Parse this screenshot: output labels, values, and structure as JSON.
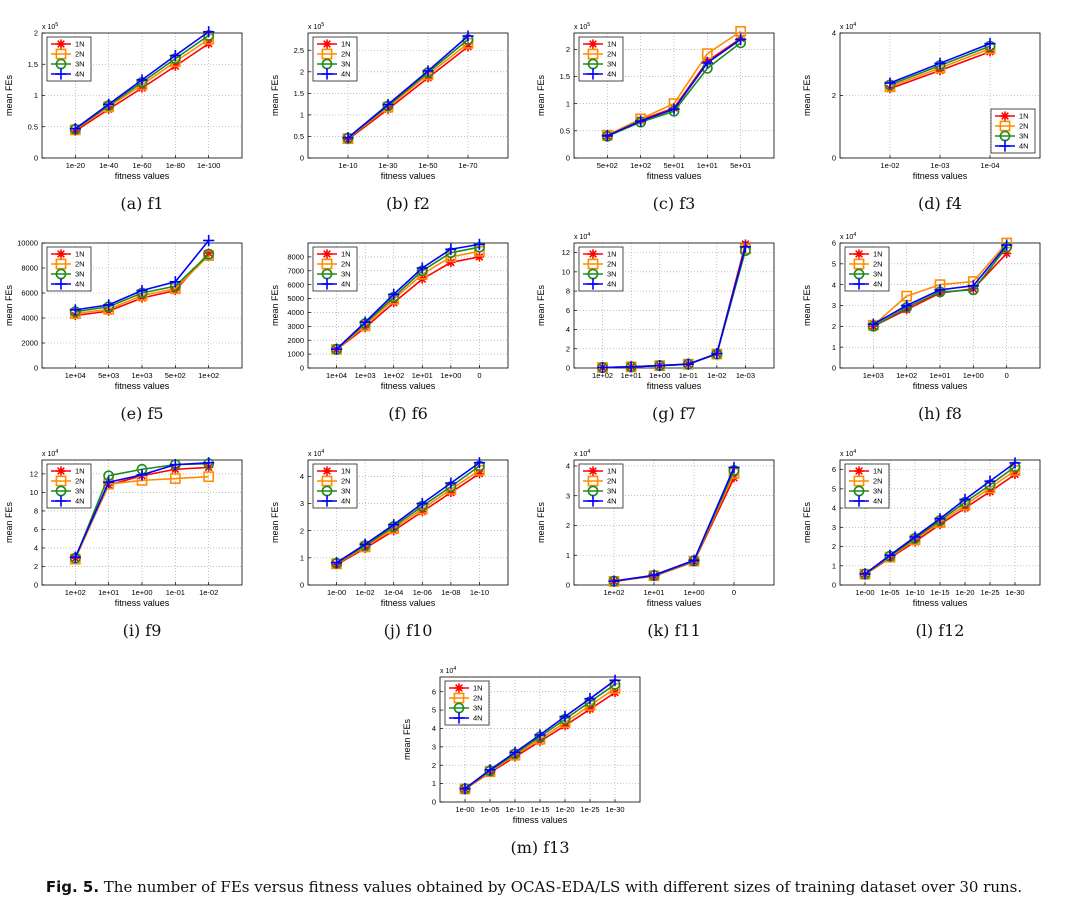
{
  "figure": {
    "caption_label": "Fig. 5.",
    "caption_text": " The number of FEs versus fitness values obtained by OCAS-EDA/LS with different sizes of training dataset over 30 runs."
  },
  "series_colors": {
    "1N": "#ff0000",
    "2N": "#ff8c00",
    "3N": "#1f8a1f",
    "4N": "#0000ff"
  },
  "series_markers": {
    "1N": "asterisk",
    "2N": "square",
    "3N": "circle",
    "4N": "plus"
  },
  "chart_data": [
    {
      "id": "f1",
      "type": "line",
      "caption": "(a)  f1",
      "xlabel": "fitness values",
      "ylabel": "mean FEs",
      "exponent": "x 10",
      "exponent_power": "5",
      "legend": "top-left",
      "categories": [
        "1e-20",
        "1e-40",
        "1e-60",
        "1e-80",
        "1e-100"
      ],
      "ylim": [
        0,
        2.0
      ],
      "yticks": [
        "0",
        "0.5",
        "1",
        "1.5",
        "2"
      ],
      "series": [
        {
          "name": "1N",
          "values": [
            0.43,
            0.78,
            1.12,
            1.47,
            1.83
          ]
        },
        {
          "name": "2N",
          "values": [
            0.45,
            0.82,
            1.17,
            1.54,
            1.9
          ]
        },
        {
          "name": "3N",
          "values": [
            0.46,
            0.84,
            1.21,
            1.59,
            1.96
          ]
        },
        {
          "name": "4N",
          "values": [
            0.47,
            0.86,
            1.25,
            1.64,
            2.02
          ]
        }
      ]
    },
    {
      "id": "f2",
      "type": "line",
      "caption": "(b)  f2",
      "xlabel": "fitness values",
      "ylabel": "mean FEs",
      "exponent": "x 10",
      "exponent_power": "5",
      "legend": "top-left",
      "categories": [
        "1e-10",
        "1e-30",
        "1e-50",
        "1e-70"
      ],
      "ylim": [
        0,
        2.9
      ],
      "yticks": [
        "0",
        "0.5",
        "1",
        "1.5",
        "2",
        "2.5"
      ],
      "series": [
        {
          "name": "1N",
          "values": [
            0.43,
            1.13,
            1.86,
            2.58
          ]
        },
        {
          "name": "2N",
          "values": [
            0.45,
            1.18,
            1.93,
            2.66
          ]
        },
        {
          "name": "3N",
          "values": [
            0.46,
            1.21,
            1.98,
            2.75
          ]
        },
        {
          "name": "4N",
          "values": [
            0.47,
            1.24,
            2.02,
            2.83
          ]
        }
      ]
    },
    {
      "id": "f3",
      "type": "line",
      "caption": "(c)  f3",
      "xlabel": "fitness values",
      "ylabel": "mean FEs",
      "exponent": "x 10",
      "exponent_power": "5",
      "legend": "top-left",
      "categories": [
        "5e+02",
        "1e+02",
        "5e+01",
        "1e+01",
        "5e+01"
      ],
      "ylim": [
        0,
        2.3
      ],
      "yticks": [
        "0",
        "0.5",
        "1",
        "1.5",
        "2"
      ],
      "series": [
        {
          "name": "1N",
          "values": [
            0.4,
            0.7,
            0.92,
            1.78,
            2.2
          ]
        },
        {
          "name": "2N",
          "values": [
            0.42,
            0.72,
            1.0,
            1.92,
            2.33
          ]
        },
        {
          "name": "3N",
          "values": [
            0.4,
            0.66,
            0.86,
            1.65,
            2.12
          ]
        },
        {
          "name": "4N",
          "values": [
            0.41,
            0.68,
            0.9,
            1.75,
            2.18
          ]
        }
      ]
    },
    {
      "id": "f4",
      "type": "line",
      "caption": "(d)  f4",
      "xlabel": "fitness values",
      "ylabel": "mean FEs",
      "exponent": "x 10",
      "exponent_power": "4",
      "legend": "bottom-right",
      "categories": [
        "1e-02",
        "1e-03",
        "1e-04"
      ],
      "ylim": [
        0,
        4
      ],
      "yticks": [
        "0",
        "2",
        "4"
      ],
      "series": [
        {
          "name": "1N",
          "values": [
            2.22,
            2.8,
            3.4
          ]
        },
        {
          "name": "2N",
          "values": [
            2.28,
            2.88,
            3.5
          ]
        },
        {
          "name": "3N",
          "values": [
            2.34,
            2.96,
            3.58
          ]
        },
        {
          "name": "4N",
          "values": [
            2.4,
            3.03,
            3.66
          ]
        }
      ]
    },
    {
      "id": "f5",
      "type": "line",
      "caption": "(e)  f5",
      "xlabel": "fitness values",
      "ylabel": "mean FEs",
      "exponent": "",
      "exponent_power": "",
      "legend": "top-left",
      "categories": [
        "1e+04",
        "5e+03",
        "1e+03",
        "5e+02",
        "1e+02"
      ],
      "ylim": [
        0,
        10000
      ],
      "yticks": [
        "0",
        "2000",
        "4000",
        "6000",
        "8000",
        "10000"
      ],
      "series": [
        {
          "name": "1N",
          "values": [
            4200,
            4550,
            5600,
            6200,
            9200
          ]
        },
        {
          "name": "2N",
          "values": [
            4350,
            4700,
            5800,
            6350,
            9000
          ]
        },
        {
          "name": "3N",
          "values": [
            4500,
            4900,
            6000,
            6550,
            9100
          ]
        },
        {
          "name": "4N",
          "values": [
            4650,
            5050,
            6200,
            6900,
            10200
          ]
        }
      ]
    },
    {
      "id": "f6",
      "type": "line",
      "caption": "(f)  f6",
      "xlabel": "fitness values",
      "ylabel": "mean FEs",
      "exponent": "",
      "exponent_power": "",
      "legend": "top-left",
      "categories": [
        "1e+04",
        "1e+03",
        "1e+02",
        "1e+01",
        "1e+00",
        "0"
      ],
      "ylim": [
        0,
        9000
      ],
      "yticks": [
        "0",
        "1000",
        "2000",
        "3000",
        "4000",
        "5000",
        "6000",
        "7000",
        "8000"
      ],
      "series": [
        {
          "name": "1N",
          "values": [
            1330,
            2900,
            4700,
            6400,
            7600,
            8000
          ]
        },
        {
          "name": "2N",
          "values": [
            1340,
            3050,
            4950,
            6750,
            8000,
            8400
          ]
        },
        {
          "name": "3N",
          "values": [
            1350,
            3200,
            5100,
            7000,
            8300,
            8700
          ]
        },
        {
          "name": "4N",
          "values": [
            1360,
            3300,
            5300,
            7200,
            8550,
            8900
          ]
        }
      ]
    },
    {
      "id": "f7",
      "type": "line",
      "caption": "(g)  f7",
      "xlabel": "fitness values",
      "ylabel": "mean FEs",
      "exponent": "x 10",
      "exponent_power": "4",
      "legend": "top-left",
      "categories": [
        "1e+02",
        "1e+01",
        "1e+00",
        "1e-01",
        "1e-02",
        "1e-03"
      ],
      "ylim": [
        0,
        13
      ],
      "yticks": [
        "0",
        "2",
        "4",
        "6",
        "8",
        "10",
        "12"
      ],
      "series": [
        {
          "name": "1N",
          "values": [
            0.05,
            0.12,
            0.25,
            0.4,
            1.5,
            12.9
          ]
        },
        {
          "name": "2N",
          "values": [
            0.05,
            0.12,
            0.25,
            0.4,
            1.45,
            12.4
          ]
        },
        {
          "name": "3N",
          "values": [
            0.05,
            0.12,
            0.25,
            0.4,
            1.45,
            12.2
          ]
        },
        {
          "name": "4N",
          "values": [
            0.05,
            0.12,
            0.25,
            0.4,
            1.5,
            12.6
          ]
        }
      ]
    },
    {
      "id": "f8",
      "type": "line",
      "caption": "(h)  f8",
      "xlabel": "fitness values",
      "ylabel": "mean FEs",
      "exponent": "x 10",
      "exponent_power": "4",
      "legend": "top-left",
      "categories": [
        "1e+03",
        "1e+02",
        "1e+01",
        "1e+00",
        "0"
      ],
      "ylim": [
        0,
        6
      ],
      "yticks": [
        "0",
        "1",
        "2",
        "3",
        "4",
        "5",
        "6"
      ],
      "series": [
        {
          "name": "1N",
          "values": [
            2.0,
            2.8,
            3.6,
            3.8,
            5.5
          ]
        },
        {
          "name": "2N",
          "values": [
            2.05,
            3.45,
            4.0,
            4.15,
            6.0
          ]
        },
        {
          "name": "3N",
          "values": [
            2.0,
            2.9,
            3.65,
            3.75,
            5.8
          ]
        },
        {
          "name": "4N",
          "values": [
            2.1,
            3.0,
            3.75,
            3.95,
            5.9
          ]
        }
      ]
    },
    {
      "id": "f9",
      "type": "line",
      "caption": "(i)  f9",
      "xlabel": "fitness values",
      "ylabel": "mean FEs",
      "exponent": "x 10",
      "exponent_power": "4",
      "legend": "top-left",
      "categories": [
        "1e+02",
        "1e+01",
        "1e+00",
        "1e-01",
        "1e-02"
      ],
      "ylim": [
        0,
        13.5
      ],
      "yticks": [
        "0",
        "2",
        "4",
        "6",
        "8",
        "10",
        "12"
      ],
      "series": [
        {
          "name": "1N",
          "values": [
            2.9,
            10.8,
            11.8,
            12.5,
            12.7
          ]
        },
        {
          "name": "2N",
          "values": [
            2.8,
            10.9,
            11.3,
            11.5,
            11.7
          ]
        },
        {
          "name": "3N",
          "values": [
            2.9,
            11.8,
            12.5,
            13.0,
            13.1
          ]
        },
        {
          "name": "4N",
          "values": [
            3.0,
            11.1,
            11.9,
            13.0,
            13.2
          ]
        }
      ]
    },
    {
      "id": "f10",
      "type": "line",
      "caption": "(j)  f10",
      "xlabel": "fitness values",
      "ylabel": "mean FEs",
      "exponent": "x 10",
      "exponent_power": "4",
      "legend": "top-left",
      "categories": [
        "1e-00",
        "1e-02",
        "1e-04",
        "1e-06",
        "1e-08",
        "1e-10"
      ],
      "ylim": [
        0,
        4.6
      ],
      "yticks": [
        "0",
        "1",
        "2",
        "3",
        "4"
      ],
      "series": [
        {
          "name": "1N",
          "values": [
            0.75,
            1.35,
            2.0,
            2.7,
            3.4,
            4.1
          ]
        },
        {
          "name": "2N",
          "values": [
            0.78,
            1.4,
            2.08,
            2.8,
            3.52,
            4.22
          ]
        },
        {
          "name": "3N",
          "values": [
            0.8,
            1.45,
            2.15,
            2.9,
            3.62,
            4.38
          ]
        },
        {
          "name": "4N",
          "values": [
            0.82,
            1.5,
            2.22,
            3.0,
            3.75,
            4.5
          ]
        }
      ]
    },
    {
      "id": "f11",
      "type": "line",
      "caption": "(k)  f11",
      "xlabel": "fitness values",
      "ylabel": "mean FEs",
      "exponent": "x 10",
      "exponent_power": "4",
      "legend": "top-left",
      "categories": [
        "1e+02",
        "1e+01",
        "1e+00",
        "0"
      ],
      "ylim": [
        0,
        4.2
      ],
      "yticks": [
        "0",
        "1",
        "2",
        "3",
        "4"
      ],
      "series": [
        {
          "name": "1N",
          "values": [
            0.12,
            0.3,
            0.78,
            3.6
          ]
        },
        {
          "name": "2N",
          "values": [
            0.12,
            0.31,
            0.8,
            3.75
          ]
        },
        {
          "name": "3N",
          "values": [
            0.13,
            0.32,
            0.81,
            3.85
          ]
        },
        {
          "name": "4N",
          "values": [
            0.13,
            0.33,
            0.83,
            3.95
          ]
        }
      ]
    },
    {
      "id": "f12",
      "type": "line",
      "caption": "(l)  f12",
      "xlabel": "fitness values",
      "ylabel": "mean FEs",
      "exponent": "x 10",
      "exponent_power": "4",
      "legend": "top-left",
      "categories": [
        "1e-00",
        "1e-05",
        "1e-10",
        "1e-15",
        "1e-20",
        "1e-25",
        "1e-30"
      ],
      "ylim": [
        0,
        6.5
      ],
      "yticks": [
        "0",
        "1",
        "2",
        "3",
        "4",
        "5",
        "6"
      ],
      "series": [
        {
          "name": "1N",
          "values": [
            0.55,
            1.4,
            2.25,
            3.15,
            4.0,
            4.85,
            5.75
          ]
        },
        {
          "name": "2N",
          "values": [
            0.56,
            1.45,
            2.35,
            3.25,
            4.15,
            5.05,
            5.95
          ]
        },
        {
          "name": "3N",
          "values": [
            0.57,
            1.5,
            2.42,
            3.35,
            4.3,
            5.2,
            6.15
          ]
        },
        {
          "name": "4N",
          "values": [
            0.58,
            1.55,
            2.5,
            3.45,
            4.45,
            5.4,
            6.35
          ]
        }
      ]
    },
    {
      "id": "f13",
      "type": "line",
      "caption": "(m)  f13",
      "xlabel": "fitness values",
      "ylabel": "mean FEs",
      "exponent": "x 10",
      "exponent_power": "4",
      "legend": "top-left",
      "categories": [
        "1e-00",
        "1e-05",
        "1e-10",
        "1e-15",
        "1e-20",
        "1e-25",
        "1e-30"
      ],
      "ylim": [
        0,
        6.8
      ],
      "yticks": [
        "0",
        "1",
        "2",
        "3",
        "4",
        "5",
        "6"
      ],
      "series": [
        {
          "name": "1N",
          "values": [
            0.7,
            1.6,
            2.45,
            3.3,
            4.15,
            5.05,
            5.95
          ]
        },
        {
          "name": "2N",
          "values": [
            0.71,
            1.65,
            2.55,
            3.42,
            4.32,
            5.25,
            6.18
          ]
        },
        {
          "name": "3N",
          "values": [
            0.72,
            1.7,
            2.62,
            3.55,
            4.5,
            5.45,
            6.4
          ]
        },
        {
          "name": "4N",
          "values": [
            0.73,
            1.75,
            2.7,
            3.65,
            4.65,
            5.62,
            6.62
          ]
        }
      ]
    }
  ]
}
